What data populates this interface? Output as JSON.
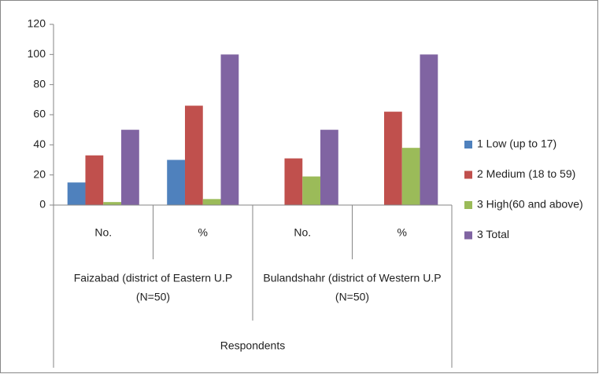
{
  "chart_data": {
    "type": "bar",
    "categories": [
      "No.",
      "%",
      "No.",
      "%"
    ],
    "groups": [
      {
        "label": [
          "Faizabad (district of Eastern U.P",
          "(N=50)"
        ]
      },
      {
        "label": [
          "Bulandshahr (district of Western U.P",
          "(N=50)"
        ]
      }
    ],
    "x_label": "Respondents",
    "series": [
      {
        "name": "1 Low (up to 17)",
        "color": "#4f81bd",
        "values": [
          15,
          30,
          0,
          0
        ]
      },
      {
        "name": "2 Medium (18 to 59)",
        "color": "#c0504d",
        "values": [
          33,
          66,
          31,
          62
        ]
      },
      {
        "name": "3 High(60 and above)",
        "color": "#9bbb59",
        "values": [
          2,
          4,
          19,
          38
        ]
      },
      {
        "name": "3 Total",
        "color": "#8064a2",
        "values": [
          50,
          100,
          50,
          100
        ]
      }
    ],
    "ylim": [
      0,
      120
    ],
    "yticks": [
      0,
      20,
      40,
      60,
      80,
      100,
      120
    ],
    "grid": false,
    "legend": "right"
  }
}
